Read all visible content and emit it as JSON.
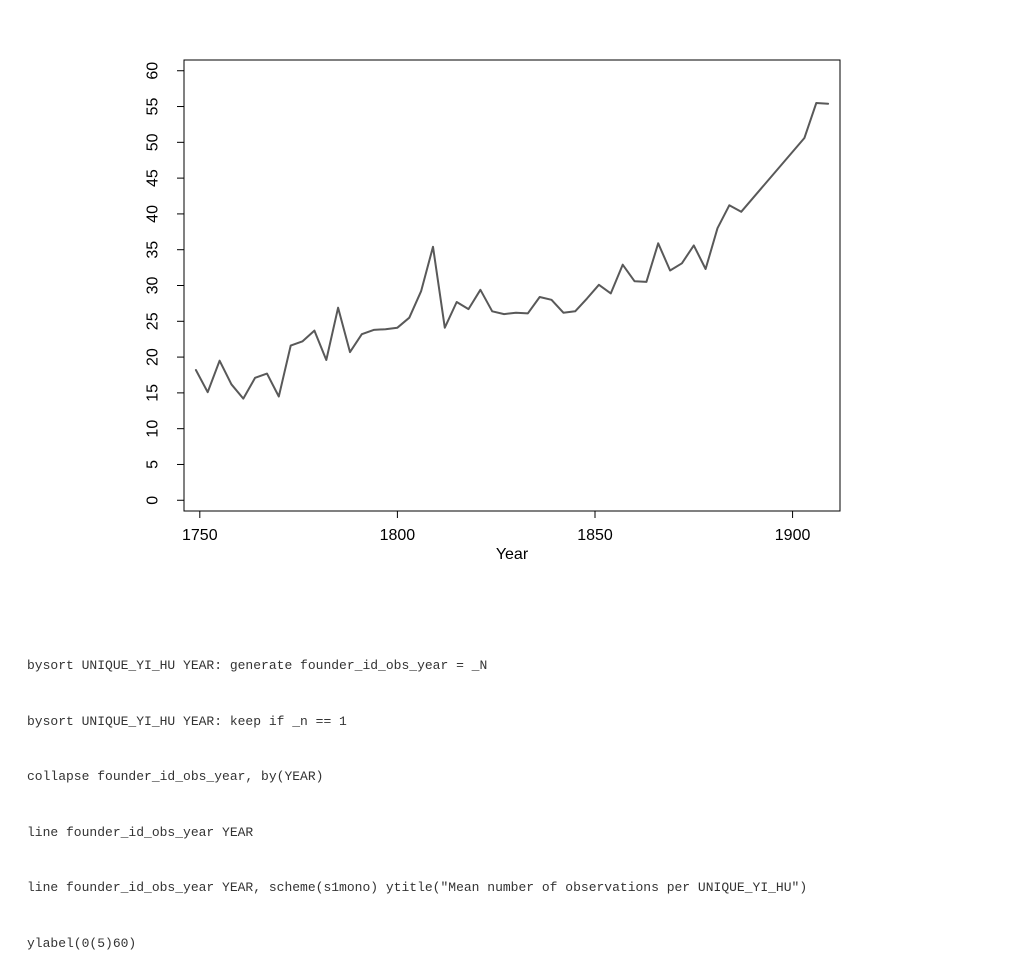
{
  "chart_data": {
    "type": "line",
    "title": "",
    "xlabel": "Year",
    "ylabel": "",
    "xlim": [
      1746,
      1912
    ],
    "ylim": [
      -1.5,
      61.5
    ],
    "x_ticks": [
      1750,
      1800,
      1850,
      1900
    ],
    "y_ticks": [
      0,
      5,
      10,
      15,
      20,
      25,
      30,
      35,
      40,
      45,
      50,
      55,
      60
    ],
    "grid": false,
    "line_color": "#595959",
    "series": [
      {
        "x": [
          1749,
          1752,
          1755,
          1758,
          1761,
          1764,
          1767,
          1770,
          1773,
          1776,
          1779,
          1782,
          1785,
          1788,
          1791,
          1794,
          1797,
          1800,
          1803,
          1806,
          1809,
          1812,
          1815,
          1818,
          1821,
          1824,
          1827,
          1830,
          1833,
          1836,
          1839,
          1842,
          1845,
          1848,
          1851,
          1854,
          1857,
          1860,
          1863,
          1866,
          1869,
          1872,
          1875,
          1878,
          1881,
          1884,
          1887,
          1903,
          1906,
          1909
        ],
        "y": [
          18.2,
          15.1,
          19.5,
          16.2,
          14.2,
          17.1,
          17.7,
          14.5,
          21.6,
          22.2,
          23.7,
          19.6,
          26.9,
          20.7,
          23.2,
          23.8,
          23.9,
          24.1,
          25.5,
          29.2,
          35.4,
          24.1,
          27.7,
          26.7,
          29.4,
          26.4,
          26.0,
          26.2,
          26.1,
          28.4,
          28.0,
          26.2,
          26.4,
          28.2,
          30.1,
          28.9,
          32.9,
          30.6,
          30.5,
          35.9,
          32.1,
          33.1,
          35.6,
          32.3,
          38.0,
          41.2,
          40.3,
          50.6,
          55.5,
          55.4
        ]
      }
    ]
  },
  "code_lines": [
    "bysort UNIQUE_YI_HU YEAR: generate founder_id_obs_year = _N",
    "bysort UNIQUE_YI_HU YEAR: keep if _n == 1",
    "collapse founder_id_obs_year, by(YEAR)",
    "line founder_id_obs_year YEAR",
    "line founder_id_obs_year YEAR, scheme(s1mono) ytitle(\"Mean number of observations per UNIQUE_YI_HU\")",
    "ylabel(0(5)60)"
  ]
}
